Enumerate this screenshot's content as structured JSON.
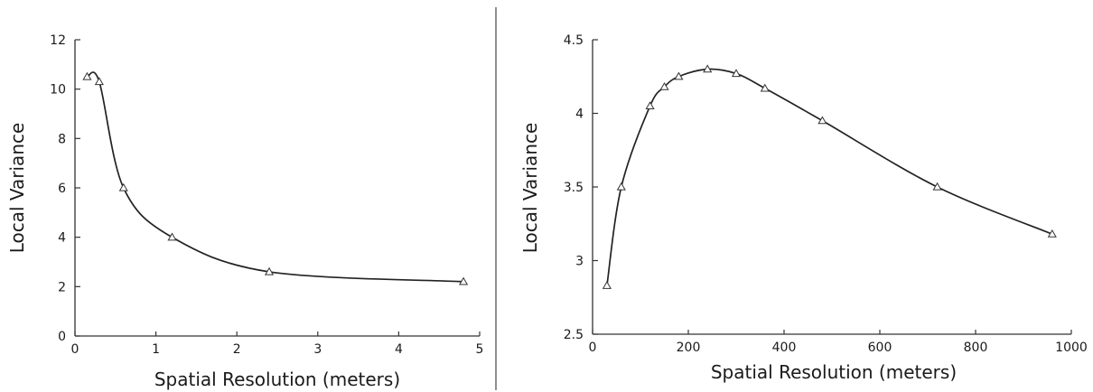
{
  "chart_data": [
    {
      "type": "line",
      "xlabel": "Spatial Resolution (meters)",
      "ylabel": "Local Variance",
      "xlim": [
        0,
        5
      ],
      "ylim": [
        0,
        12
      ],
      "xticks": [
        0,
        1,
        2,
        3,
        4,
        5
      ],
      "yticks": [
        0,
        2,
        4,
        6,
        8,
        10,
        12
      ],
      "x_tick_labels": [
        "0",
        "1",
        "2",
        "3",
        "4",
        "5"
      ],
      "y_tick_labels": [
        "0",
        "2",
        "4",
        "6",
        "8",
        "10",
        "12"
      ],
      "marker": "triangle",
      "grid": false,
      "x": [
        0.15,
        0.3,
        0.6,
        1.2,
        2.4,
        4.8
      ],
      "y": [
        10.5,
        10.3,
        6.0,
        4.0,
        2.6,
        2.2
      ]
    },
    {
      "type": "line",
      "xlabel": "Spatial Resolution (meters)",
      "ylabel": "Local Variance",
      "xlim": [
        0,
        1000
      ],
      "ylim": [
        2.5,
        4.5
      ],
      "xticks": [
        0,
        200,
        400,
        600,
        800,
        1000
      ],
      "yticks": [
        2.5,
        3,
        3.5,
        4,
        4.5
      ],
      "x_tick_labels": [
        "0",
        "200",
        "400",
        "600",
        "800",
        "1000"
      ],
      "y_tick_labels": [
        "2.5",
        "3",
        "3.5",
        "4",
        "4.5"
      ],
      "marker": "triangle",
      "grid": false,
      "x": [
        30,
        60,
        120,
        150,
        180,
        240,
        300,
        360,
        480,
        720,
        960
      ],
      "y": [
        2.83,
        3.5,
        4.05,
        4.18,
        4.25,
        4.3,
        4.27,
        4.17,
        3.95,
        3.5,
        3.18
      ]
    }
  ]
}
